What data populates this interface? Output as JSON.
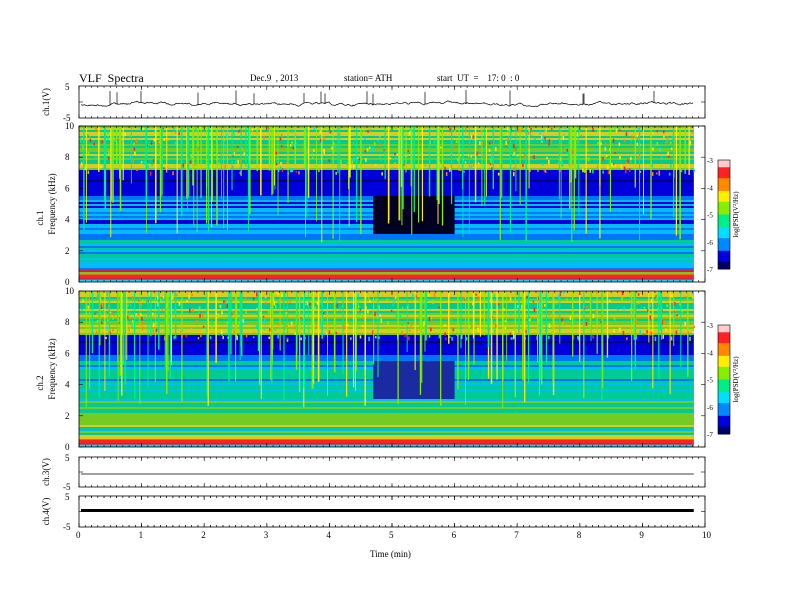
{
  "header": {
    "title": "VLF  Spectra",
    "date": "Dec.9  , 2013",
    "station": "station= ATH",
    "start": "start  UT  =    17: 0  : 0"
  },
  "chart_data": [
    {
      "type": "line",
      "panel": "ch1-waveform",
      "ylabel": "ch.1(V)",
      "ylim": [
        -5,
        5
      ],
      "yticks": [
        "5",
        "-5"
      ],
      "note": "noisy trace near 0 V"
    },
    {
      "type": "heatmap",
      "panel": "ch1-spectrogram",
      "ylabel": "ch.1\nFrequency (kHz)",
      "ylim": [
        0,
        10
      ],
      "yticks": [
        "0",
        "2",
        "4",
        "6",
        "8",
        "10"
      ],
      "colorbar": {
        "label": "log(PSD(V²/Hz)",
        "ticks": [
          "-3",
          "-4",
          "-5",
          "-6",
          "-7"
        ],
        "range": [
          -7,
          -3
        ]
      },
      "quiet_interval_min": [
        4.7,
        6.0
      ]
    },
    {
      "type": "heatmap",
      "panel": "ch2-spectrogram",
      "ylabel": "ch.2\nFrequency (kHz)",
      "ylim": [
        0,
        10
      ],
      "yticks": [
        "0",
        "2",
        "4",
        "6",
        "8",
        "10"
      ],
      "colorbar": {
        "label": "log(PSD(V²/Hz)",
        "ticks": [
          "-3",
          "-4",
          "-5",
          "-6",
          "-7"
        ],
        "range": [
          -7,
          -3
        ]
      },
      "quiet_interval_min": [
        4.7,
        6.0
      ]
    },
    {
      "type": "line",
      "panel": "ch3-waveform",
      "ylabel": "ch.3(V)",
      "ylim": [
        -5,
        5
      ],
      "yticks": [
        "5",
        "-5"
      ],
      "note": "flat near 0 V"
    },
    {
      "type": "line",
      "panel": "ch4-waveform",
      "ylabel": "ch.4(V)",
      "ylim": [
        -5,
        5
      ],
      "yticks": [
        "5",
        "-5"
      ],
      "note": "thick flat trace near 0 V"
    }
  ],
  "xaxis": {
    "label": "Time  (min)",
    "range": [
      0,
      10
    ],
    "ticks": [
      "0",
      "1",
      "2",
      "3",
      "4",
      "5",
      "6",
      "7",
      "8",
      "9",
      "10"
    ],
    "data_end": 9.82
  },
  "palette": [
    "#000066",
    "#0000dd",
    "#0088ff",
    "#00ddff",
    "#00ee88",
    "#88ee00",
    "#ffee00",
    "#ff8800",
    "#ff2222",
    "#ffcccc"
  ]
}
